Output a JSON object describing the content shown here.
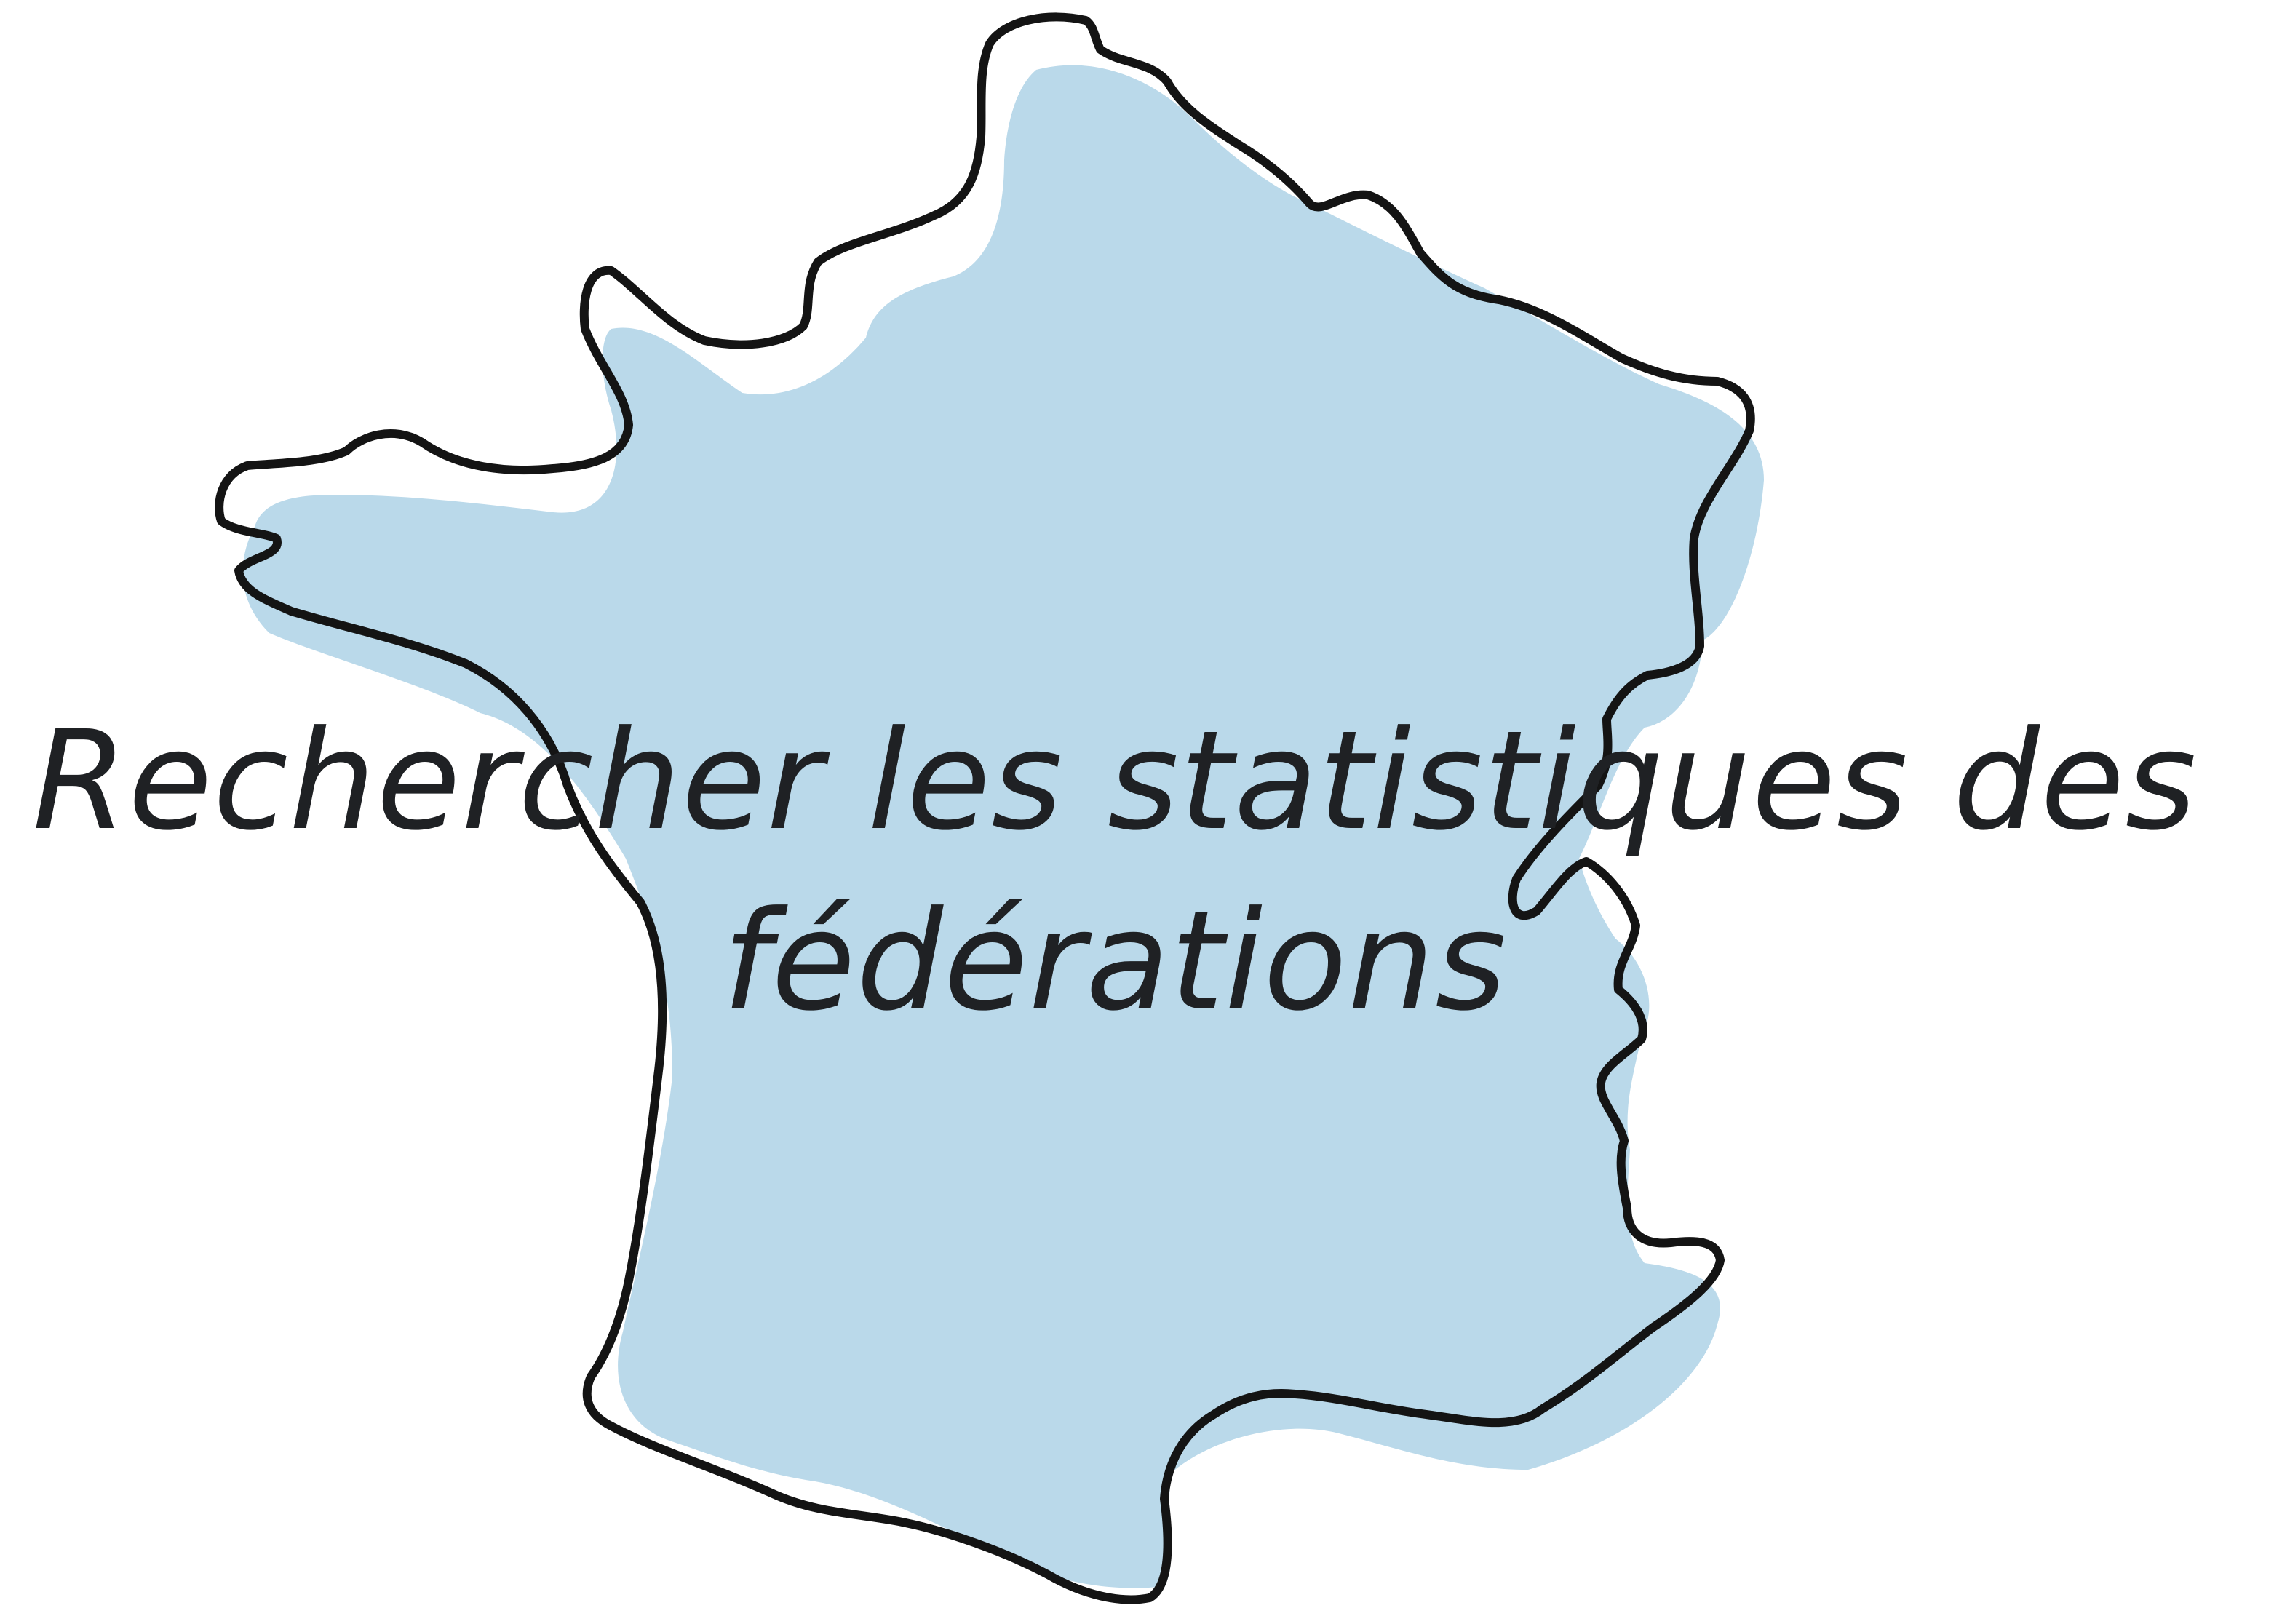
{
  "hero": {
    "title": "Rechercher les statistiques des fédérations",
    "map_icon": "france-map-icon",
    "colors": {
      "map_fill": "#bad9ea",
      "map_outline": "#141414",
      "title_text": "#1f2124",
      "background": "#ffffff"
    }
  }
}
